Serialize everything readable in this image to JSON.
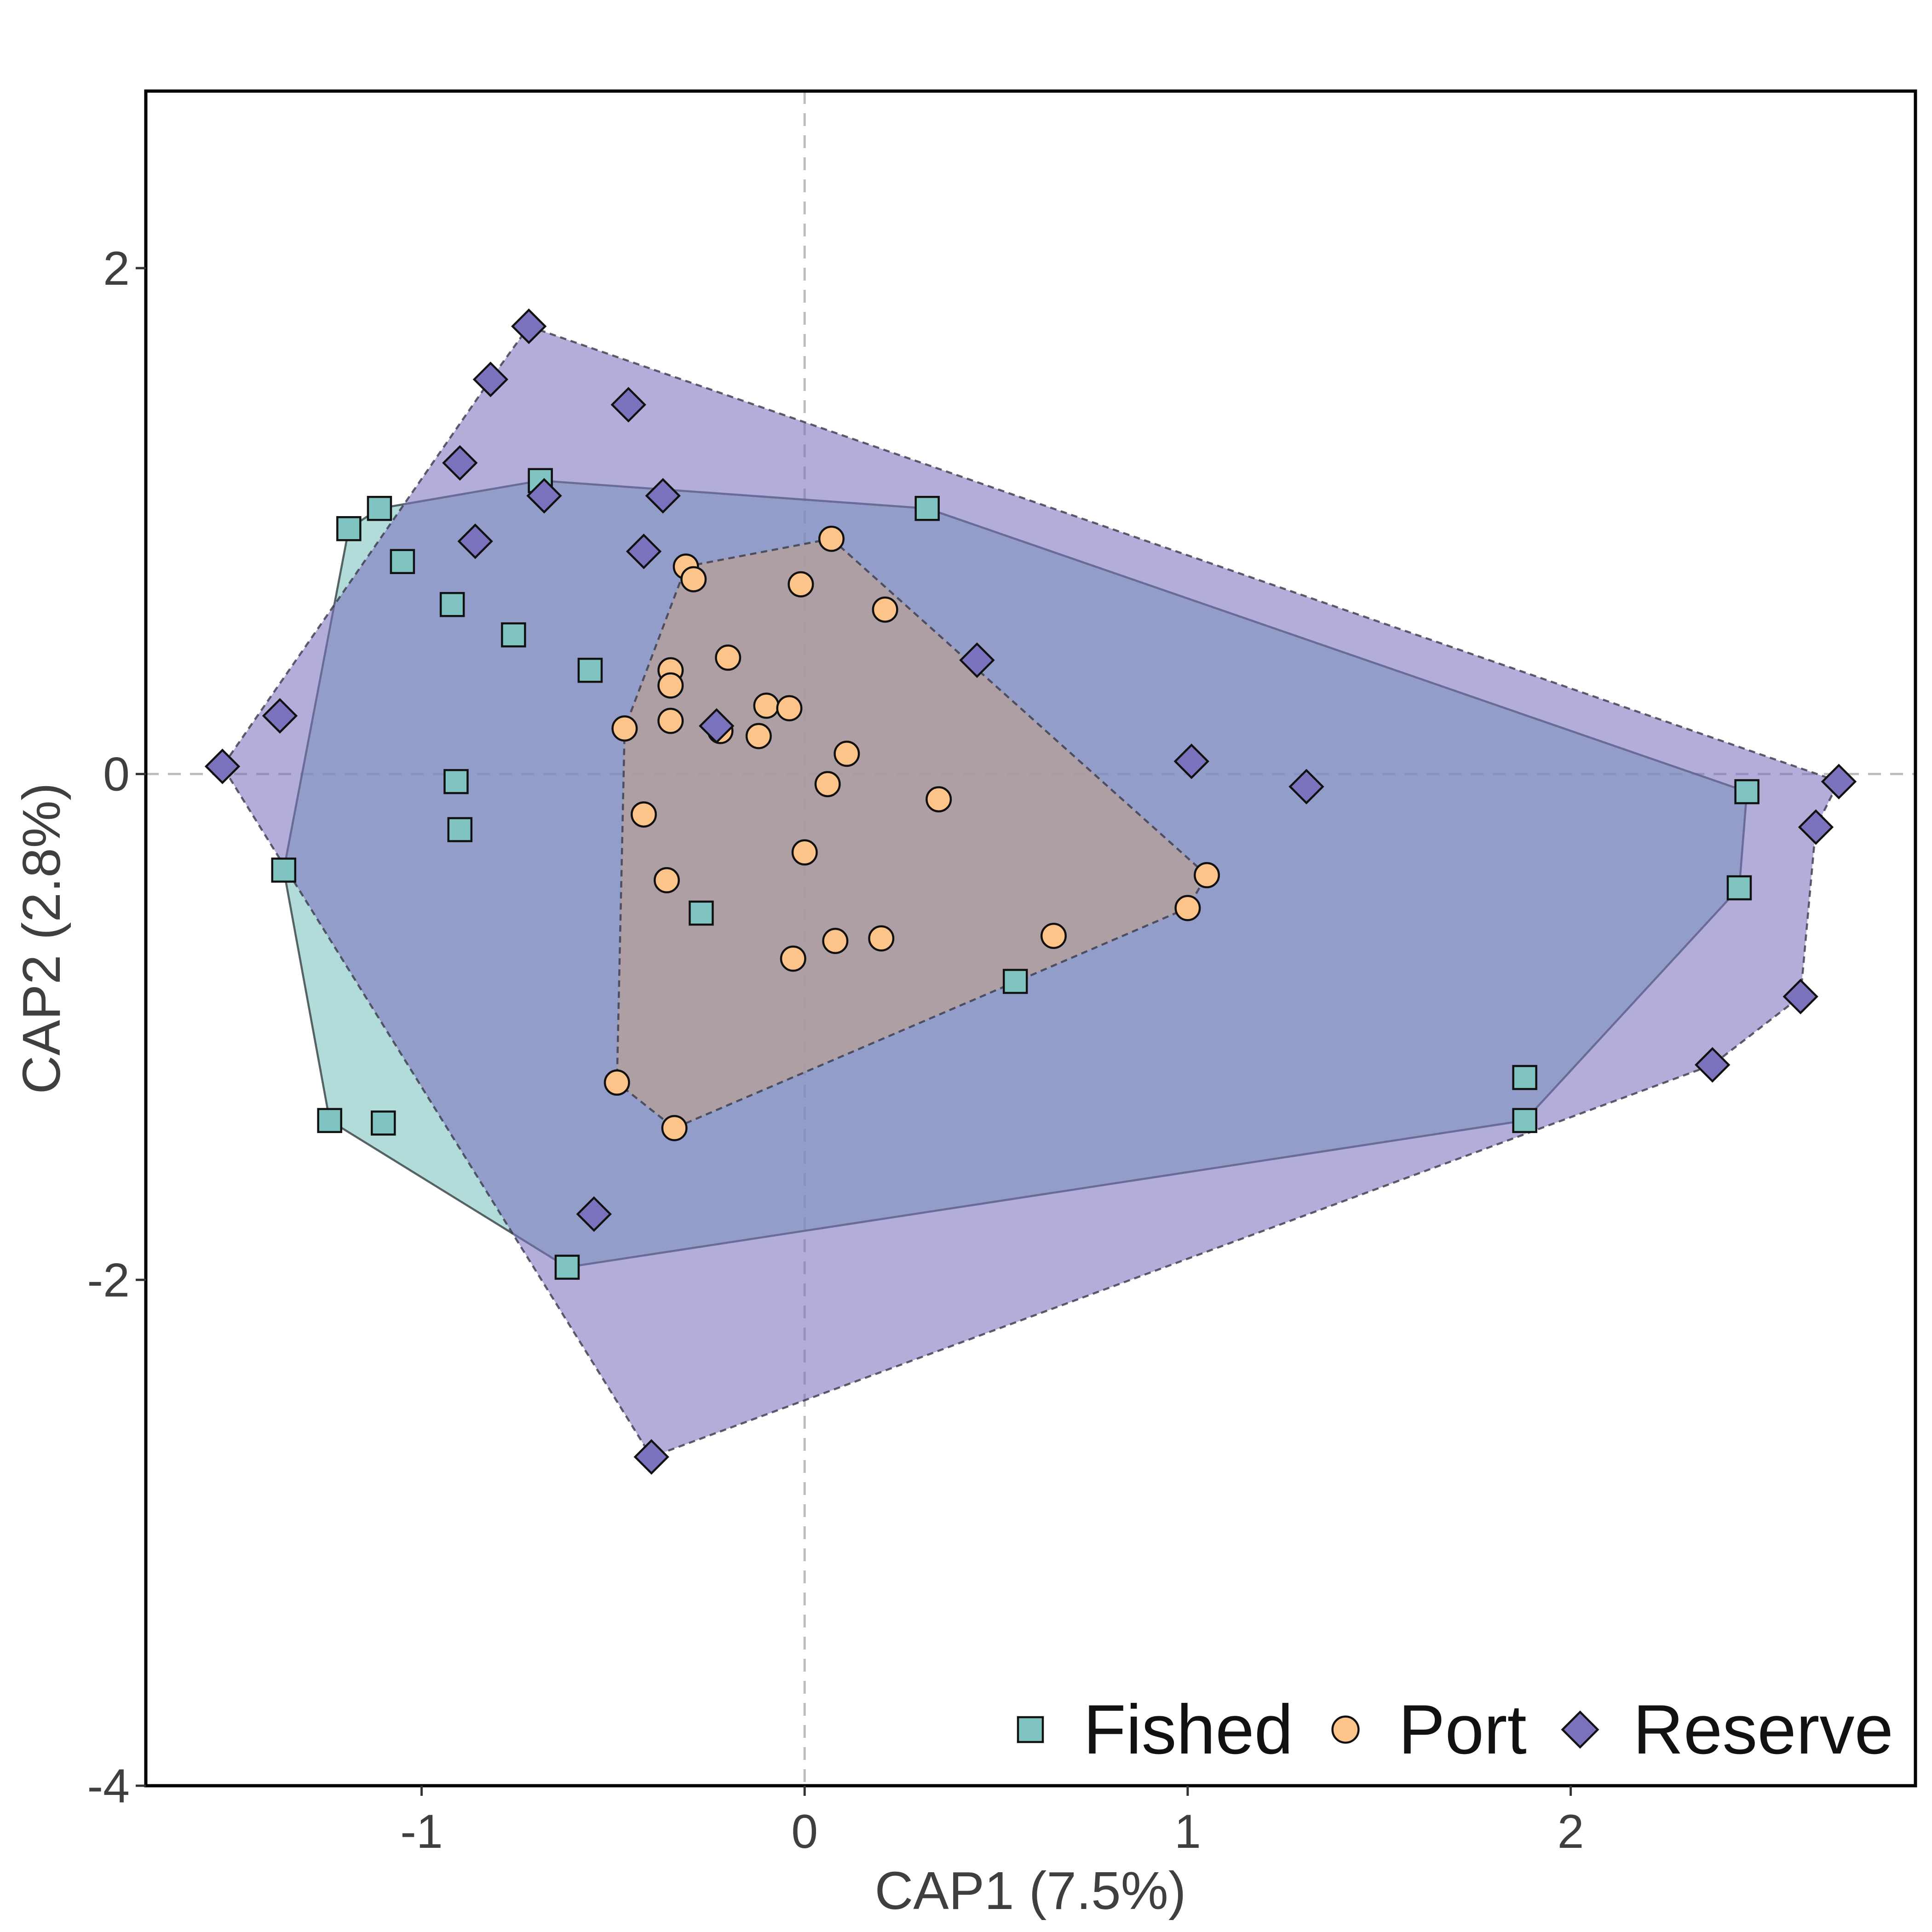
{
  "chart_data": {
    "type": "scatter",
    "title": "",
    "xlabel": "CAP1 (7.5%)",
    "ylabel": "CAP2 (2.8%)",
    "xlim": [
      -1.72,
      2.9
    ],
    "ylim": [
      -4.0,
      2.7
    ],
    "x_ticks": [
      -1,
      0,
      1,
      2
    ],
    "x_tick_labels": [
      "-1",
      "0",
      "1",
      "2"
    ],
    "y_ticks": [
      -4,
      -2,
      0,
      2
    ],
    "y_tick_labels": [
      "-4",
      "-2",
      "0",
      "2"
    ],
    "grid": false,
    "reference_lines": {
      "x": 0,
      "y": 0,
      "style": "dashed"
    },
    "legend_position": "bottom-right",
    "series": [
      {
        "name": "Fished",
        "marker": "square",
        "color": "#7fc4c0",
        "hull_fill": "#7fc4c0",
        "hull_line": "solid",
        "points": [
          [
            -1.11,
            1.05
          ],
          [
            -1.19,
            0.97
          ],
          [
            -1.05,
            0.84
          ],
          [
            -0.92,
            0.67
          ],
          [
            -0.76,
            0.55
          ],
          [
            -0.56,
            0.41
          ],
          [
            -0.69,
            1.16
          ],
          [
            0.32,
            1.05
          ],
          [
            -0.91,
            -0.03
          ],
          [
            -0.9,
            -0.22
          ],
          [
            -1.36,
            -0.38
          ],
          [
            -0.27,
            -0.55
          ],
          [
            0.55,
            -0.82
          ],
          [
            -1.24,
            -1.37
          ],
          [
            -1.1,
            -1.38
          ],
          [
            -0.62,
            -1.95
          ],
          [
            1.88,
            -1.2
          ],
          [
            1.88,
            -1.37
          ],
          [
            2.44,
            -0.45
          ],
          [
            2.46,
            -0.07
          ]
        ],
        "hull": [
          [
            -1.11,
            1.05
          ],
          [
            -0.69,
            1.16
          ],
          [
            0.32,
            1.05
          ],
          [
            2.46,
            -0.07
          ],
          [
            2.44,
            -0.45
          ],
          [
            1.88,
            -1.37
          ],
          [
            -0.62,
            -1.95
          ],
          [
            -1.24,
            -1.37
          ],
          [
            -1.36,
            -0.38
          ],
          [
            -1.19,
            0.97
          ]
        ]
      },
      {
        "name": "Port",
        "marker": "circle",
        "color": "#fdc48a",
        "hull_fill": "#b89f97",
        "hull_line": "dashed",
        "points": [
          [
            0.07,
            0.93
          ],
          [
            -0.31,
            0.82
          ],
          [
            -0.29,
            0.77
          ],
          [
            -0.01,
            0.75
          ],
          [
            0.21,
            0.65
          ],
          [
            -0.2,
            0.46
          ],
          [
            -0.35,
            0.41
          ],
          [
            -0.35,
            0.35
          ],
          [
            -0.1,
            0.27
          ],
          [
            -0.04,
            0.26
          ],
          [
            -0.35,
            0.21
          ],
          [
            -0.47,
            0.18
          ],
          [
            -0.22,
            0.17
          ],
          [
            -0.12,
            0.15
          ],
          [
            0.11,
            0.08
          ],
          [
            0.06,
            -0.04
          ],
          [
            0.35,
            -0.1
          ],
          [
            -0.42,
            -0.16
          ],
          [
            0.0,
            -0.31
          ],
          [
            -0.36,
            -0.42
          ],
          [
            1.05,
            -0.4
          ],
          [
            1.0,
            -0.53
          ],
          [
            0.65,
            -0.64
          ],
          [
            0.2,
            -0.65
          ],
          [
            0.08,
            -0.66
          ],
          [
            -0.03,
            -0.73
          ],
          [
            -0.49,
            -1.22
          ],
          [
            -0.34,
            -1.4
          ]
        ],
        "hull": [
          [
            0.07,
            0.93
          ],
          [
            1.05,
            -0.4
          ],
          [
            1.0,
            -0.53
          ],
          [
            -0.34,
            -1.4
          ],
          [
            -0.49,
            -1.22
          ],
          [
            -0.47,
            0.18
          ],
          [
            -0.31,
            0.82
          ]
        ]
      },
      {
        "name": "Reserve",
        "marker": "diamond",
        "color": "#7b72be",
        "hull_fill": "#7b72be",
        "hull_line": "dashed",
        "points": [
          [
            -0.72,
            1.77
          ],
          [
            -0.82,
            1.56
          ],
          [
            -0.46,
            1.46
          ],
          [
            -0.9,
            1.23
          ],
          [
            -0.68,
            1.1
          ],
          [
            -0.37,
            1.1
          ],
          [
            -0.86,
            0.92
          ],
          [
            -0.42,
            0.88
          ],
          [
            0.45,
            0.45
          ],
          [
            -1.37,
            0.23
          ],
          [
            -1.52,
            0.03
          ],
          [
            -0.23,
            0.19
          ],
          [
            1.01,
            0.05
          ],
          [
            1.31,
            -0.05
          ],
          [
            2.7,
            -0.03
          ],
          [
            2.64,
            -0.21
          ],
          [
            2.6,
            -0.88
          ],
          [
            2.37,
            -1.15
          ],
          [
            -0.55,
            -1.74
          ],
          [
            -0.4,
            -2.7
          ]
        ],
        "hull": [
          [
            -0.72,
            1.77
          ],
          [
            2.7,
            -0.03
          ],
          [
            2.64,
            -0.21
          ],
          [
            2.6,
            -0.88
          ],
          [
            2.37,
            -1.15
          ],
          [
            -0.4,
            -2.7
          ],
          [
            -1.52,
            0.03
          ],
          [
            -0.82,
            1.56
          ]
        ]
      }
    ]
  }
}
